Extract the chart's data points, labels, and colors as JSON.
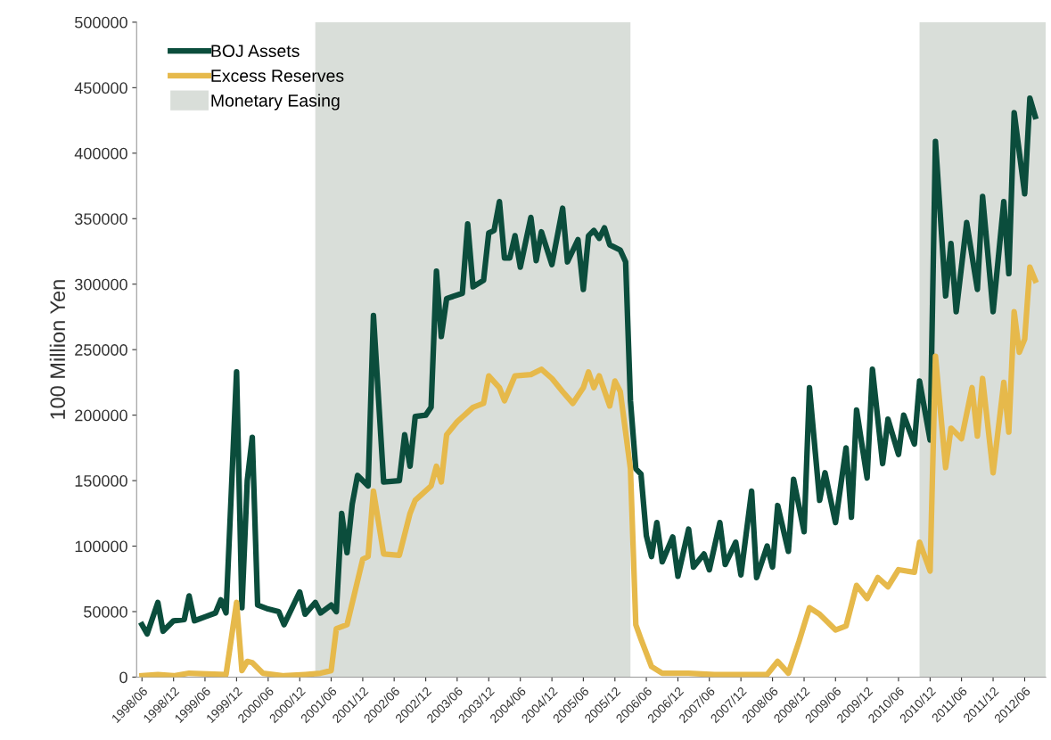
{
  "chart_data": {
    "type": "line",
    "ylabel": "100 Million Yen",
    "ylim": [
      0,
      500000
    ],
    "yticks": [
      0,
      50000,
      100000,
      150000,
      200000,
      250000,
      300000,
      350000,
      400000,
      450000,
      500000
    ],
    "xlim": [
      "1998-05",
      "2012-10"
    ],
    "xticks": [
      {
        "value": "1998-06",
        "label": "1998/06"
      },
      {
        "value": "1998-12",
        "label": "1998/12"
      },
      {
        "value": "1999-06",
        "label": "1999/06"
      },
      {
        "value": "1999-12",
        "label": "1999/12"
      },
      {
        "value": "2000-06",
        "label": "2000/06"
      },
      {
        "value": "2000-12",
        "label": "2000/12"
      },
      {
        "value": "2001-06",
        "label": "2001/06"
      },
      {
        "value": "2001-12",
        "label": "2001/12"
      },
      {
        "value": "2002-06",
        "label": "2002/06"
      },
      {
        "value": "2002-12",
        "label": "2002/12"
      },
      {
        "value": "2003-06",
        "label": "2003/06"
      },
      {
        "value": "2003-12",
        "label": "2003/12"
      },
      {
        "value": "2004-06",
        "label": "2004/06"
      },
      {
        "value": "2004-12",
        "label": "2004/12"
      },
      {
        "value": "2005-06",
        "label": "2005/06"
      },
      {
        "value": "2005-12",
        "label": "2005/12"
      },
      {
        "value": "2006-06",
        "label": "2006/06"
      },
      {
        "value": "2006-12",
        "label": "2006/12"
      },
      {
        "value": "2007-06",
        "label": "2007/06"
      },
      {
        "value": "2007-12",
        "label": "2007/12"
      },
      {
        "value": "2008-06",
        "label": "2008/06"
      },
      {
        "value": "2008-12",
        "label": "2008/12"
      },
      {
        "value": "2009-06",
        "label": "2009/06"
      },
      {
        "value": "2009-12",
        "label": "2009/12"
      },
      {
        "value": "2010-06",
        "label": "2010/06"
      },
      {
        "value": "2010-12",
        "label": "2010/12"
      },
      {
        "value": "2011-06",
        "label": "2011/06"
      },
      {
        "value": "2011-12",
        "label": "2011/12"
      },
      {
        "value": "2012-06",
        "label": "2012/06"
      }
    ],
    "grid": false,
    "legend": "top left",
    "marker": "none",
    "line_style": "solid",
    "bands": [
      {
        "axis": "x",
        "from": "2001-03",
        "to": "2006-03",
        "label": "Monetary Easing",
        "color": "#d9ded9"
      },
      {
        "axis": "x",
        "from": "2010-10",
        "to": "2012-10",
        "color": "#d9ded9"
      }
    ],
    "series": [
      {
        "name": "BOJ Assets",
        "color": "#0b4d3c",
        "x": [
          "1998-06",
          "1998-07",
          "1998-09",
          "1998-10",
          "1998-12",
          "1999-02",
          "1999-03",
          "1999-04",
          "1999-06",
          "1999-08",
          "1999-09",
          "1999-10",
          "1999-12",
          "2000-01",
          "2000-02",
          "2000-03",
          "2000-04",
          "2000-06",
          "2000-08",
          "2000-09",
          "2000-12",
          "2001-01",
          "2001-03",
          "2001-04",
          "2001-06",
          "2001-07",
          "2001-08",
          "2001-09",
          "2001-10",
          "2001-11",
          "2002-01",
          "2002-02",
          "2002-04",
          "2002-07",
          "2002-08",
          "2002-09",
          "2002-10",
          "2002-12",
          "2003-01",
          "2003-02",
          "2003-03",
          "2003-04",
          "2003-07",
          "2003-08",
          "2003-09",
          "2003-11",
          "2003-12",
          "2004-01",
          "2004-02",
          "2004-03",
          "2004-04",
          "2004-05",
          "2004-06",
          "2004-08",
          "2004-09",
          "2004-10",
          "2004-12",
          "2005-02",
          "2005-03",
          "2005-05",
          "2005-06",
          "2005-07",
          "2005-08",
          "2005-09",
          "2005-10",
          "2005-11",
          "2006-01",
          "2006-02",
          "2006-03",
          "2006-04",
          "2006-05",
          "2006-06",
          "2006-07",
          "2006-08",
          "2006-09",
          "2006-11",
          "2006-12",
          "2007-02",
          "2007-03",
          "2007-05",
          "2007-06",
          "2007-08",
          "2007-09",
          "2007-11",
          "2007-12",
          "2008-02",
          "2008-03",
          "2008-05",
          "2008-06",
          "2008-07",
          "2008-09",
          "2008-10",
          "2008-12",
          "2009-01",
          "2009-03",
          "2009-04",
          "2009-06",
          "2009-08",
          "2009-09",
          "2009-10",
          "2009-12",
          "2010-01",
          "2010-03",
          "2010-04",
          "2010-06",
          "2010-07",
          "2010-09",
          "2010-10",
          "2010-12",
          "2011-01",
          "2011-03",
          "2011-04",
          "2011-05",
          "2011-07",
          "2011-09",
          "2011-10",
          "2011-12",
          "2012-02",
          "2012-03",
          "2012-04",
          "2012-06",
          "2012-07",
          "2012-08"
        ],
        "values": [
          40000,
          33000,
          57000,
          35000,
          43000,
          44000,
          62000,
          43000,
          46000,
          49000,
          59000,
          49000,
          233000,
          53000,
          150000,
          183000,
          55000,
          52000,
          50000,
          40000,
          65000,
          48000,
          57000,
          49000,
          55000,
          50000,
          125000,
          95000,
          132000,
          154000,
          146000,
          276000,
          149000,
          150000,
          185000,
          161000,
          199000,
          200000,
          206000,
          310000,
          260000,
          289000,
          293000,
          346000,
          298000,
          303000,
          339000,
          341000,
          363000,
          320000,
          320000,
          337000,
          313000,
          351000,
          318000,
          340000,
          315000,
          358000,
          317000,
          334000,
          296000,
          337000,
          341000,
          335000,
          343000,
          330000,
          326000,
          317000,
          211000,
          159000,
          155000,
          108000,
          92000,
          118000,
          88000,
          107000,
          77000,
          113000,
          84000,
          94000,
          82000,
          118000,
          86000,
          103000,
          78000,
          142000,
          76000,
          100000,
          84000,
          131000,
          96000,
          151000,
          111000,
          221000,
          135000,
          156000,
          118000,
          175000,
          122000,
          204000,
          152000,
          235000,
          163000,
          197000,
          170000,
          200000,
          178000,
          226000,
          181000,
          409000,
          291000,
          331000,
          279000,
          347000,
          296000,
          367000,
          279000,
          363000,
          308000,
          431000,
          369000,
          442000,
          428000
        ]
      },
      {
        "name": "Excess Reserves",
        "color": "#e6b94b",
        "x": [
          "1998-06",
          "1998-09",
          "1998-12",
          "1999-03",
          "1999-10",
          "1999-12",
          "2000-01",
          "2000-02",
          "2000-03",
          "2000-05",
          "2000-09",
          "2001-01",
          "2001-04",
          "2001-06",
          "2001-07",
          "2001-09",
          "2001-12",
          "2002-01",
          "2002-02",
          "2002-04",
          "2002-07",
          "2002-09",
          "2002-10",
          "2003-01",
          "2003-02",
          "2003-03",
          "2003-04",
          "2003-06",
          "2003-09",
          "2003-11",
          "2003-12",
          "2004-02",
          "2004-03",
          "2004-05",
          "2004-08",
          "2004-10",
          "2004-12",
          "2005-02",
          "2005-04",
          "2005-06",
          "2005-07",
          "2005-08",
          "2005-09",
          "2005-11",
          "2005-12",
          "2006-01",
          "2006-03",
          "2006-04",
          "2006-05",
          "2006-07",
          "2006-09",
          "2007-02",
          "2007-07",
          "2008-05",
          "2008-07",
          "2008-09",
          "2008-11",
          "2009-01",
          "2009-03",
          "2009-06",
          "2009-08",
          "2009-10",
          "2009-12",
          "2010-02",
          "2010-04",
          "2010-06",
          "2010-09",
          "2010-10",
          "2010-12",
          "2011-01",
          "2011-03",
          "2011-04",
          "2011-06",
          "2011-08",
          "2011-09",
          "2011-10",
          "2011-12",
          "2012-02",
          "2012-03",
          "2012-04",
          "2012-05",
          "2012-06",
          "2012-07",
          "2012-08"
        ],
        "values": [
          1000,
          2000,
          1000,
          3000,
          2000,
          57000,
          5000,
          12000,
          11000,
          3000,
          1000,
          2000,
          3000,
          5000,
          37000,
          40000,
          90000,
          92000,
          142000,
          94000,
          93000,
          125000,
          135000,
          146000,
          161000,
          149000,
          185000,
          195000,
          206000,
          209000,
          230000,
          221000,
          211000,
          230000,
          231000,
          235000,
          228000,
          218000,
          209000,
          221000,
          233000,
          221000,
          230000,
          207000,
          226000,
          218000,
          159000,
          40000,
          29000,
          8000,
          3000,
          3000,
          2000,
          2000,
          12000,
          3000,
          27000,
          53000,
          48000,
          36000,
          39000,
          70000,
          60000,
          76000,
          69000,
          82000,
          80000,
          103000,
          81000,
          245000,
          160000,
          190000,
          182000,
          221000,
          184000,
          228000,
          156000,
          225000,
          187000,
          279000,
          248000,
          258000,
          313000,
          303000
        ]
      }
    ]
  }
}
